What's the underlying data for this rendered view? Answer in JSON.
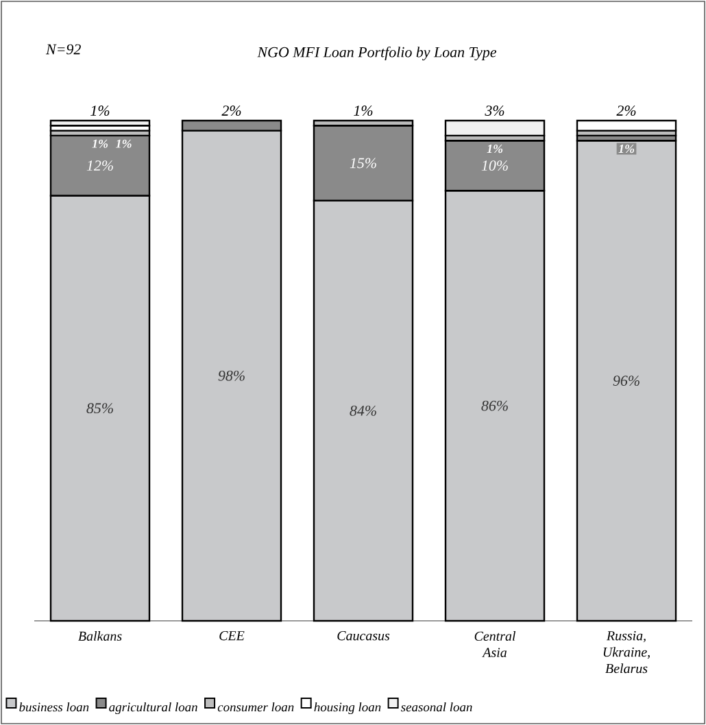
{
  "chart_data": {
    "type": "bar",
    "stacked": true,
    "title": "NGO MFI Loan Portfolio by Loan Type",
    "annotations": [
      "N=92"
    ],
    "categories": [
      "Balkans",
      "CEE",
      "Caucasus",
      "Central Asia",
      "Russia, Ukraine, Belarus"
    ],
    "series": [
      {
        "name": "business loan",
        "color": "#c8c9cb",
        "values": [
          85,
          98,
          84,
          86,
          96
        ],
        "value_labels": [
          "85%",
          "98%",
          "84%",
          "86%",
          "96%"
        ]
      },
      {
        "name": "agricultural loan",
        "color": "#8a8a8a",
        "values": [
          12,
          2,
          15,
          10,
          1
        ],
        "value_labels": [
          "12%",
          "2%",
          "15%",
          "10%",
          "1%"
        ]
      },
      {
        "name": "consumer loan",
        "color": "#bdbdbd",
        "values": [
          1,
          null,
          1,
          1,
          1
        ],
        "value_labels": [
          "1%",
          null,
          "1%",
          "1%",
          null
        ]
      },
      {
        "name": "housing loan",
        "color": "#ffffff",
        "values": [
          1,
          null,
          null,
          null,
          2
        ],
        "value_labels": [
          "1%",
          null,
          null,
          null,
          "2%"
        ]
      },
      {
        "name": "seasonal loan",
        "color": "#f2f2f2",
        "values": [
          1,
          null,
          null,
          3,
          null
        ],
        "value_labels": [
          "1%",
          null,
          null,
          "3%",
          null
        ]
      }
    ],
    "ylim": [
      0,
      100
    ],
    "tick_labels": "x",
    "legend": "bottom"
  }
}
